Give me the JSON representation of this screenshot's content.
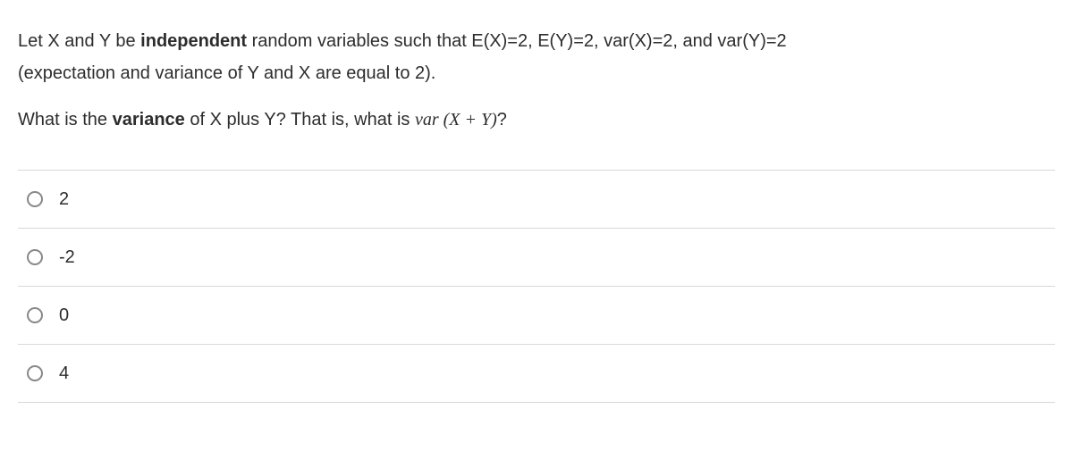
{
  "question": {
    "line1_pre": "Let X and Y be ",
    "line1_bold": "independent",
    "line1_post": " random variables such that E(X)=2, E(Y)=2, var(X)=2, and var(Y)=2",
    "line2": "(expectation and variance of Y and X are equal to 2).",
    "line3_pre": "What is the ",
    "line3_bold": "variance",
    "line3_mid": " of X plus Y? That is, what is ",
    "line3_math_var": "var",
    "line3_math_expr": " (X + Y)",
    "line3_post": "?"
  },
  "options": [
    {
      "label": "2"
    },
    {
      "label": "-2"
    },
    {
      "label": "0"
    },
    {
      "label": "4"
    }
  ],
  "colors": {
    "text": "#2d2d2d",
    "border": "#d8d8d8",
    "radio_border": "#888888",
    "background": "#ffffff"
  },
  "typography": {
    "body_fontsize": 20,
    "option_fontsize": 20
  }
}
